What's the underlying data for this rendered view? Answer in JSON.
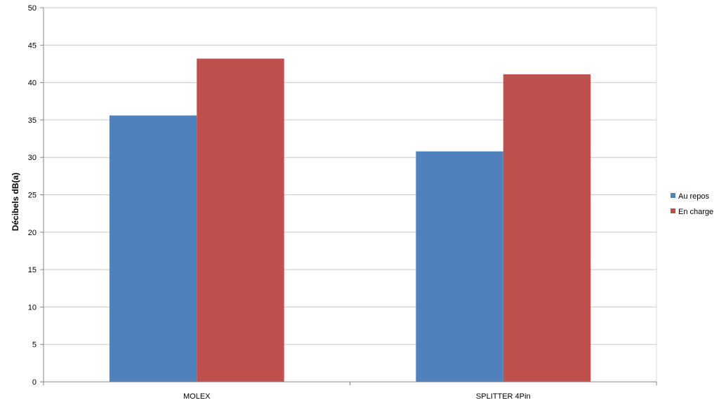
{
  "chart_data": {
    "type": "bar",
    "title": "",
    "xlabel": "",
    "ylabel": "Décibels dB(a)",
    "ylim": [
      0,
      50
    ],
    "ytick_step": 5,
    "yticks": [
      "0",
      "5",
      "10",
      "15",
      "20",
      "25",
      "30",
      "35",
      "40",
      "45",
      "50"
    ],
    "grid": true,
    "legend_position": "right",
    "categories": [
      "MOLEX",
      "SPLITTER 4Pin"
    ],
    "series": [
      {
        "name": "Au repos",
        "color": "#4F81BD",
        "values": [
          35.6,
          30.8
        ]
      },
      {
        "name": "En charge",
        "color": "#C0504D",
        "values": [
          43.2,
          41.1
        ]
      }
    ]
  }
}
